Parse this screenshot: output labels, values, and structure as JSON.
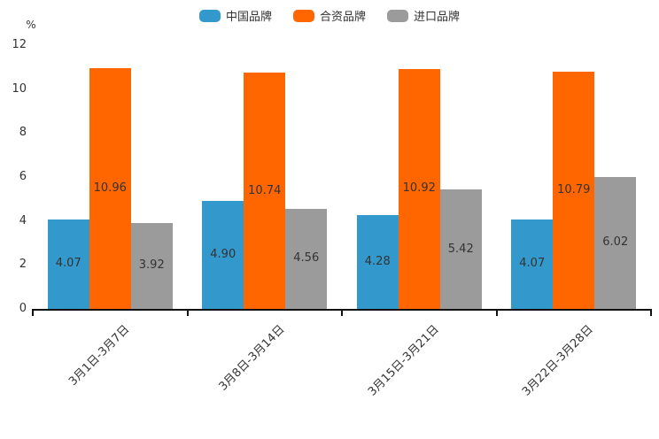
{
  "chart_data": {
    "type": "bar",
    "title": "",
    "categories": [
      "3月1日-3月7日",
      "3月8日-3月14日",
      "3月15日-3月21日",
      "3月22日-3月28日"
    ],
    "series": [
      {
        "name": "中国品牌",
        "color": "#3398CC",
        "values": [
          4.07,
          4.9,
          4.28,
          4.07
        ]
      },
      {
        "name": "合资品牌",
        "color": "#FF6600",
        "values": [
          10.96,
          10.74,
          10.92,
          10.79
        ]
      },
      {
        "name": "进口品牌",
        "color": "#9B9B9B",
        "values": [
          3.92,
          4.56,
          5.42,
          6.02
        ]
      }
    ],
    "value_label_decimals": 2,
    "xlabel": "",
    "ylabel": "%",
    "ylim": [
      0,
      12
    ],
    "yticks": [
      0,
      2,
      4,
      6,
      8,
      10,
      12
    ],
    "grid": false,
    "legend_position": "top",
    "colors": {
      "text": "#333333",
      "axis": "#111111",
      "background": "#ffffff"
    }
  }
}
